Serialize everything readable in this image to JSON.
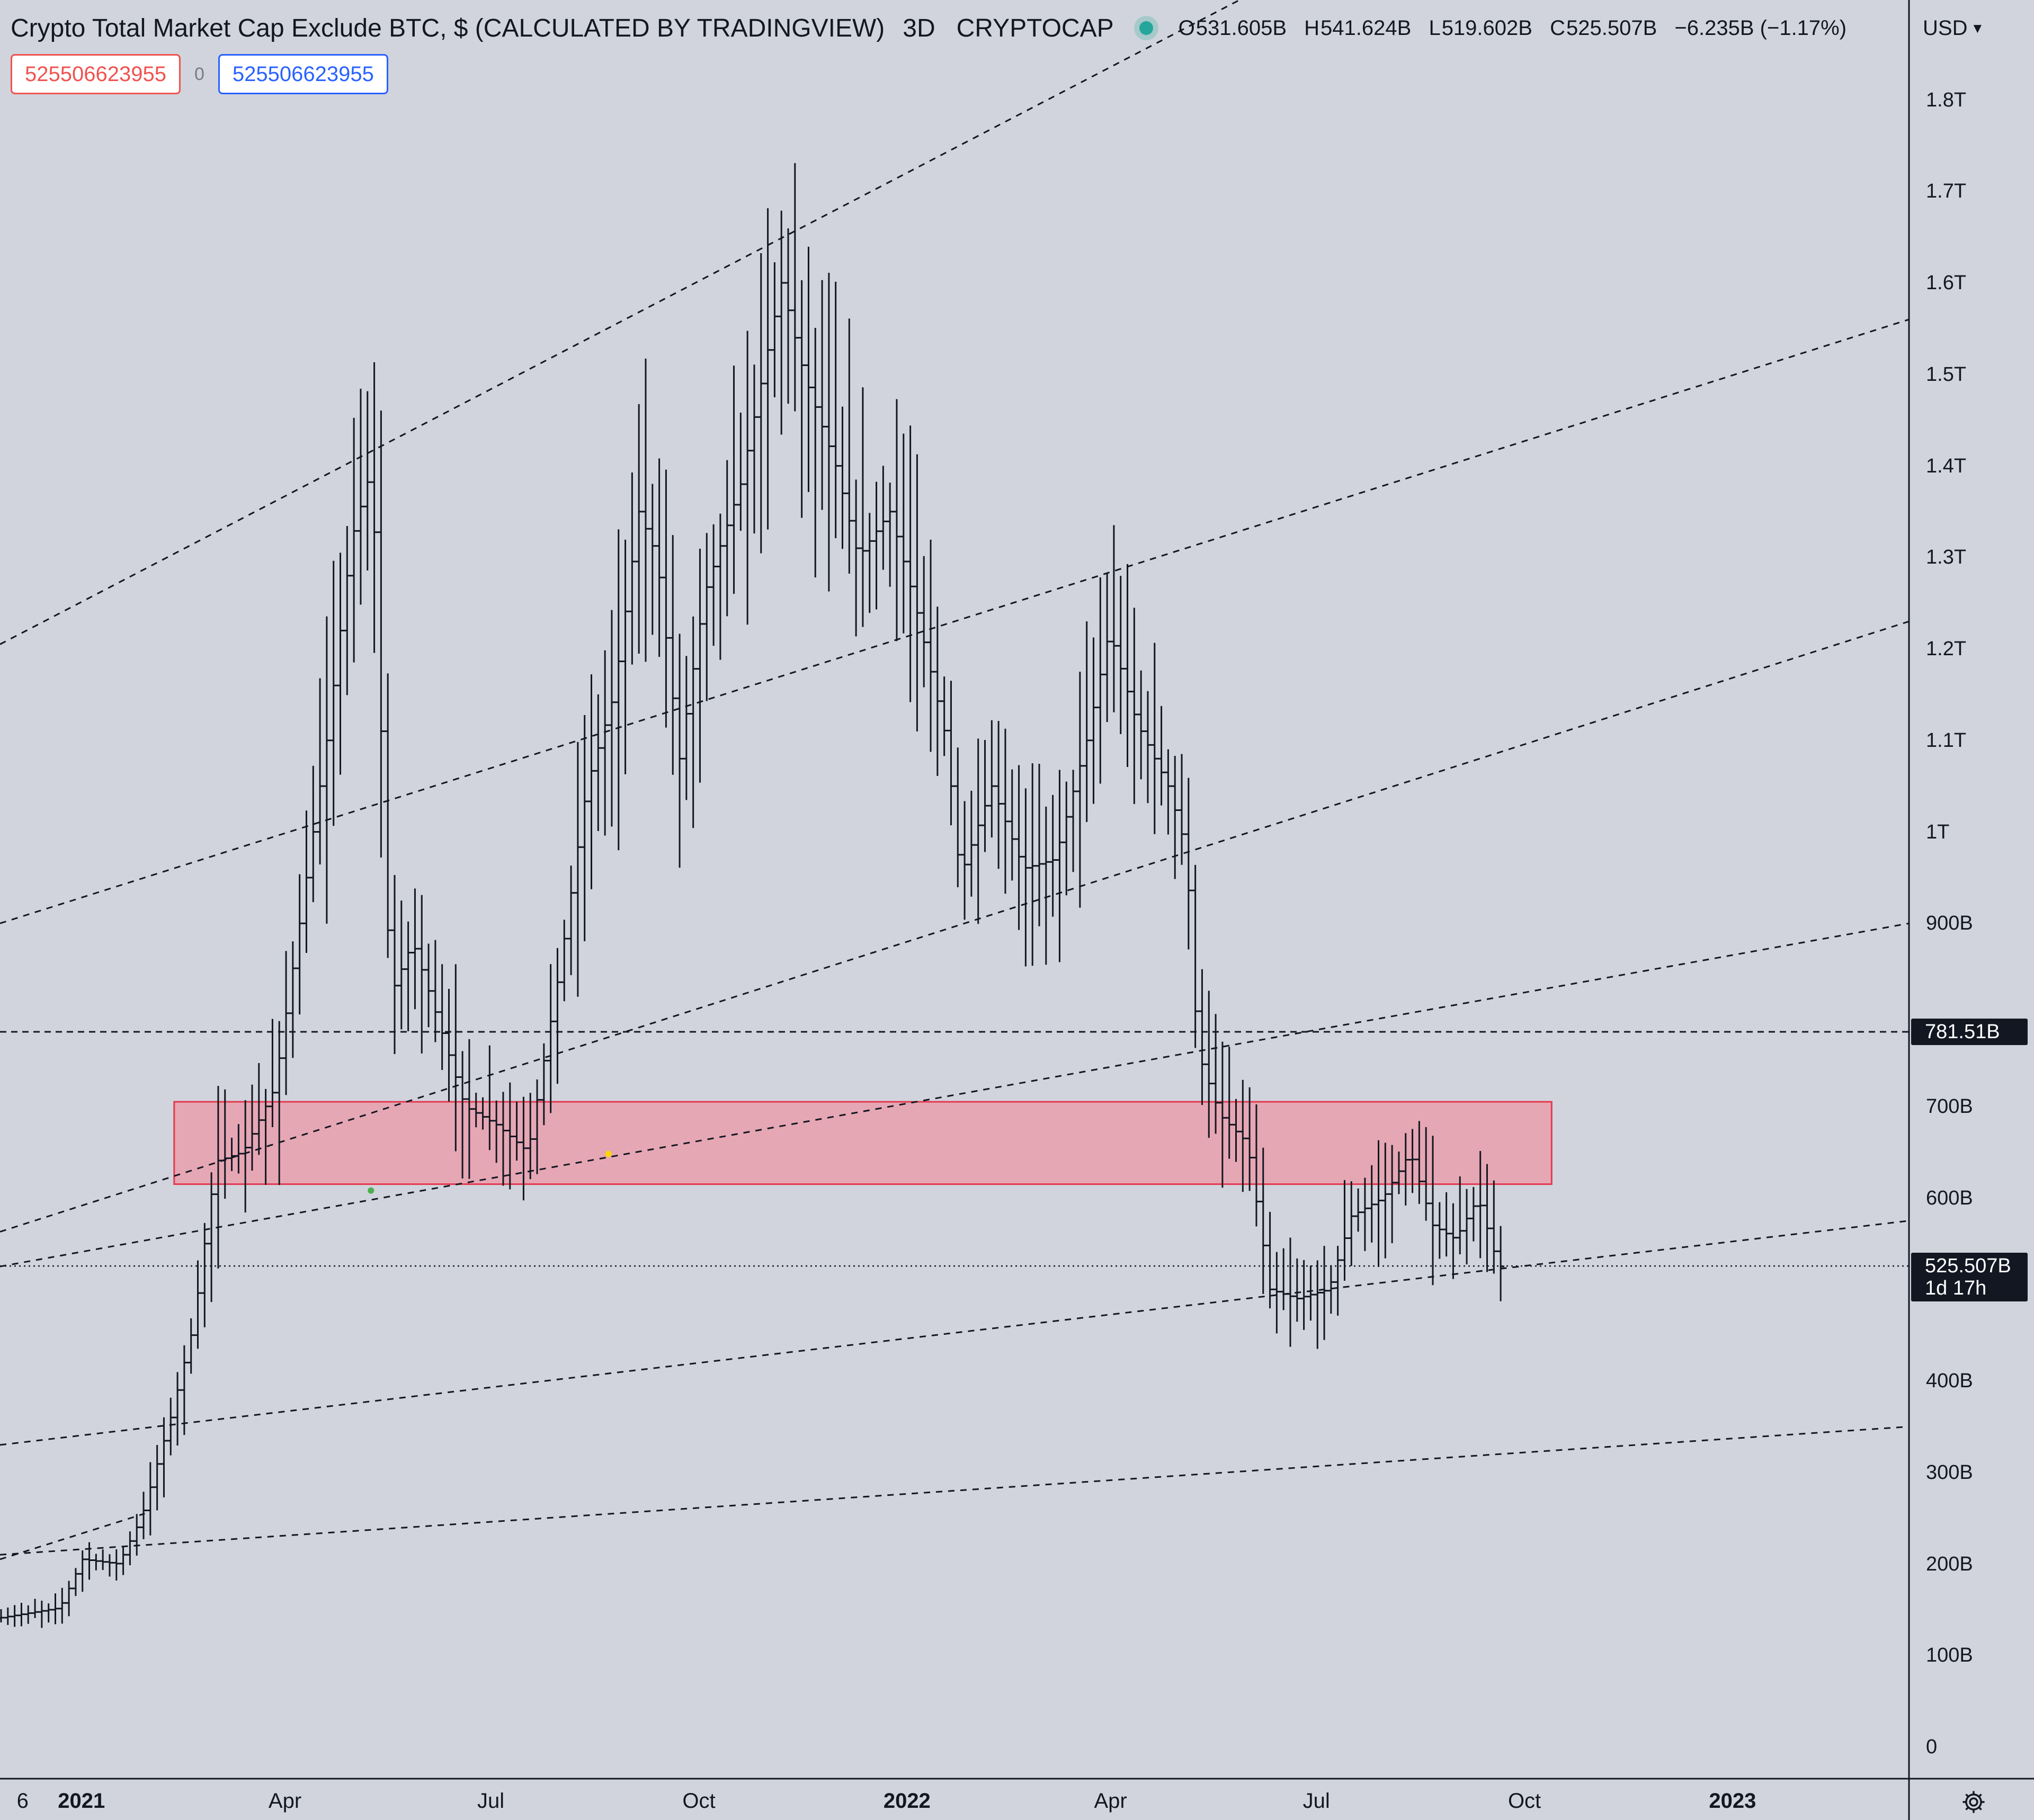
{
  "header": {
    "symbol_title": "Crypto Total Market Cap Exclude BTC, $ (CALCULATED BY TRADINGVIEW)",
    "timeframe": "3D",
    "exchange": "CRYPTOCAP",
    "ohlc": [
      {
        "key": "O",
        "value": "531.605B"
      },
      {
        "key": "H",
        "value": "541.624B"
      },
      {
        "key": "L",
        "value": "519.602B"
      },
      {
        "key": "C",
        "value": "525.507B"
      }
    ],
    "change": "−6.235B (−1.17%)",
    "currency": "USD",
    "status_color": "#26a69a"
  },
  "inputs": {
    "left_value": "525506623955",
    "middle_value": "0",
    "right_value": "525506623955"
  },
  "price_labels": {
    "horizontal_line": {
      "text": "781.51B",
      "value": 781.51
    },
    "last_price": {
      "text": "525.507B",
      "countdown": "1d 17h",
      "value": 525.507
    }
  },
  "chart_data": {
    "type": "ohlc",
    "y_unit": "B",
    "ylim": [
      0,
      1850
    ],
    "y_ticks": [
      {
        "label": "0",
        "value": 0
      },
      {
        "label": "100B",
        "value": 100
      },
      {
        "label": "200B",
        "value": 200
      },
      {
        "label": "300B",
        "value": 300
      },
      {
        "label": "400B",
        "value": 400
      },
      {
        "label": "600B",
        "value": 600
      },
      {
        "label": "700B",
        "value": 700
      },
      {
        "label": "900B",
        "value": 900
      },
      {
        "label": "1T",
        "value": 1000
      },
      {
        "label": "1.1T",
        "value": 1100
      },
      {
        "label": "1.2T",
        "value": 1200
      },
      {
        "label": "1.3T",
        "value": 1300
      },
      {
        "label": "1.4T",
        "value": 1400
      },
      {
        "label": "1.5T",
        "value": 1500
      },
      {
        "label": "1.6T",
        "value": 1600
      },
      {
        "label": "1.7T",
        "value": 1700
      },
      {
        "label": "1.8T",
        "value": 1800
      }
    ],
    "x_ticks": [
      {
        "label": "6",
        "date": "2020-12-06",
        "bold": false
      },
      {
        "label": "2021",
        "date": "2021-01-01",
        "bold": true
      },
      {
        "label": "Apr",
        "date": "2021-04-01",
        "bold": false
      },
      {
        "label": "Jul",
        "date": "2021-07-01",
        "bold": false
      },
      {
        "label": "Oct",
        "date": "2021-10-01",
        "bold": false
      },
      {
        "label": "2022",
        "date": "2022-01-01",
        "bold": true
      },
      {
        "label": "Apr",
        "date": "2022-04-01",
        "bold": false
      },
      {
        "label": "Jul",
        "date": "2022-07-01",
        "bold": false
      },
      {
        "label": "Oct",
        "date": "2022-10-01",
        "bold": false
      },
      {
        "label": "2023",
        "date": "2023-01-01",
        "bold": true
      }
    ],
    "xlim": [
      "2020-11-26",
      "2023-03-20"
    ],
    "bar_interval_days": 3,
    "price_path": [
      [
        "2020-11-26",
        140
      ],
      [
        "2020-12-25",
        152
      ],
      [
        "2021-01-04",
        205
      ],
      [
        "2021-01-20",
        200
      ],
      [
        "2021-01-30",
        250
      ],
      [
        "2021-02-12",
        360
      ],
      [
        "2021-02-22",
        460
      ],
      [
        "2021-03-04",
        640
      ],
      [
        "2021-03-16",
        650
      ],
      [
        "2021-03-30",
        720
      ],
      [
        "2021-04-10",
        900
      ],
      [
        "2021-04-22",
        1100
      ],
      [
        "2021-05-03",
        1320
      ],
      [
        "2021-05-12",
        1400
      ],
      [
        "2021-05-20",
        820
      ],
      [
        "2021-05-30",
        880
      ],
      [
        "2021-06-12",
        780
      ],
      [
        "2021-06-22",
        700
      ],
      [
        "2021-07-06",
        680
      ],
      [
        "2021-07-20",
        650
      ],
      [
        "2021-08-03",
        850
      ],
      [
        "2021-08-15",
        1050
      ],
      [
        "2021-08-27",
        1150
      ],
      [
        "2021-09-07",
        1350
      ],
      [
        "2021-09-15",
        1300
      ],
      [
        "2021-09-25",
        1080
      ],
      [
        "2021-10-06",
        1260
      ],
      [
        "2021-10-22",
        1380
      ],
      [
        "2021-11-09",
        1600
      ],
      [
        "2021-11-19",
        1500
      ],
      [
        "2021-12-03",
        1400
      ],
      [
        "2021-12-13",
        1300
      ],
      [
        "2021-12-27",
        1350
      ],
      [
        "2022-01-07",
        1250
      ],
      [
        "2022-01-21",
        1100
      ],
      [
        "2022-01-27",
        950
      ],
      [
        "2022-02-10",
        1050
      ],
      [
        "2022-02-24",
        960
      ],
      [
        "2022-03-10",
        970
      ],
      [
        "2022-03-24",
        1100
      ],
      [
        "2022-04-03",
        1220
      ],
      [
        "2022-04-15",
        1120
      ],
      [
        "2022-04-29",
        1050
      ],
      [
        "2022-05-07",
        980
      ],
      [
        "2022-05-12",
        760
      ],
      [
        "2022-05-22",
        690
      ],
      [
        "2022-06-03",
        660
      ],
      [
        "2022-06-13",
        500
      ],
      [
        "2022-06-25",
        490
      ],
      [
        "2022-07-09",
        500
      ],
      [
        "2022-07-19",
        580
      ],
      [
        "2022-08-02",
        600
      ],
      [
        "2022-08-14",
        650
      ],
      [
        "2022-08-24",
        570
      ],
      [
        "2022-09-03",
        555
      ],
      [
        "2022-09-13",
        600
      ],
      [
        "2022-09-22",
        525
      ]
    ],
    "zone": {
      "from": "2021-02-11",
      "to": "2022-10-13",
      "low": 615,
      "high": 705,
      "color": "#f28b9b"
    },
    "trend_lines": [
      {
        "from": [
          "2020-11-26",
          1205
        ],
        "to": [
          "2022-10-08",
          2080
        ]
      },
      {
        "from": [
          "2020-11-26",
          900
        ],
        "to": [
          "2023-03-20",
          1560
        ]
      },
      {
        "from": [
          "2020-11-26",
          563
        ],
        "to": [
          "2023-03-20",
          1230
        ]
      },
      {
        "from": [
          "2020-11-26",
          525
        ],
        "to": [
          "2023-03-20",
          900
        ]
      },
      {
        "from": [
          "2020-11-26",
          330
        ],
        "to": [
          "2023-03-20",
          575
        ]
      },
      {
        "from": [
          "2020-11-26",
          210
        ],
        "to": [
          "2023-03-20",
          350
        ]
      },
      {
        "from": [
          "2020-11-26",
          205
        ],
        "to": [
          "2021-01-29",
          255
        ]
      }
    ],
    "markers": [
      {
        "date": "2021-05-09",
        "value": 608,
        "color": "#4caf50"
      },
      {
        "date": "2021-08-22",
        "value": 648,
        "color": "#ffd600"
      }
    ]
  }
}
